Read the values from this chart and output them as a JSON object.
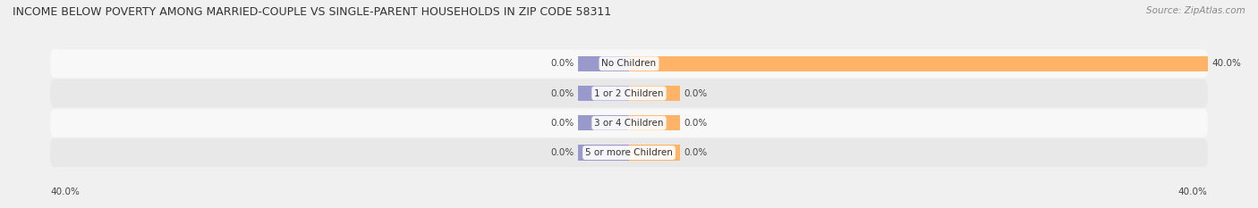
{
  "title": "INCOME BELOW POVERTY AMONG MARRIED-COUPLE VS SINGLE-PARENT HOUSEHOLDS IN ZIP CODE 58311",
  "source": "Source: ZipAtlas.com",
  "categories": [
    "No Children",
    "1 or 2 Children",
    "3 or 4 Children",
    "5 or more Children"
  ],
  "married_values": [
    0.0,
    0.0,
    0.0,
    0.0
  ],
  "single_values": [
    40.0,
    0.0,
    0.0,
    0.0
  ],
  "married_color": "#9999cc",
  "single_color": "#ffb366",
  "axis_max": 40.0,
  "axis_min": -40.0,
  "background_color": "#f0f0f0",
  "row_bg_light": "#f8f8f8",
  "row_bg_dark": "#e8e8e8",
  "title_fontsize": 9.0,
  "source_fontsize": 7.5,
  "label_fontsize": 7.5,
  "legend_fontsize": 8.0,
  "bar_height": 0.52,
  "stub_size": 3.5,
  "bottom_left_label": "40.0%",
  "bottom_right_label": "40.0%"
}
